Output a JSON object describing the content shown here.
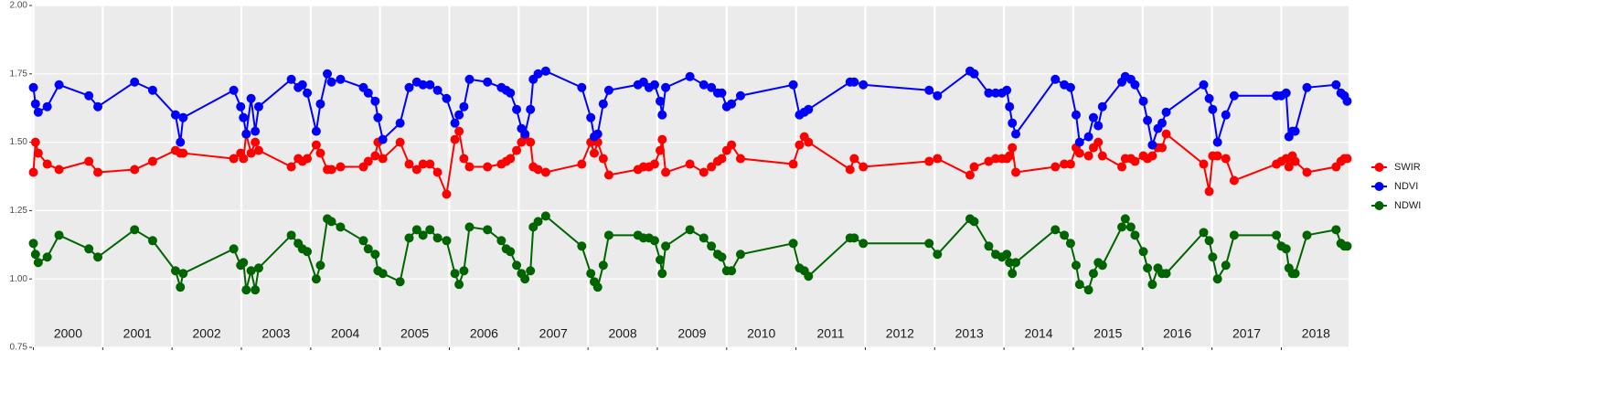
{
  "chart_data": {
    "type": "line",
    "x": [
      2000.0,
      2000.03,
      2000.07,
      2000.2,
      2000.37,
      2000.8,
      2000.93,
      2001.46,
      2001.72,
      2002.05,
      2002.12,
      2002.16,
      2002.89,
      2002.99,
      2003.03,
      2003.07,
      2003.14,
      2003.2,
      2003.25,
      2003.72,
      2003.82,
      2003.88,
      2003.95,
      2004.08,
      2004.14,
      2004.24,
      2004.3,
      2004.43,
      2004.76,
      2004.83,
      2004.93,
      2004.97,
      2005.04,
      2005.29,
      2005.42,
      2005.53,
      2005.62,
      2005.72,
      2005.83,
      2005.96,
      2006.08,
      2006.14,
      2006.21,
      2006.29,
      2006.55,
      2006.75,
      2006.82,
      2006.88,
      2006.97,
      2007.04,
      2007.09,
      2007.17,
      2007.21,
      2007.28,
      2007.39,
      2007.91,
      2008.04,
      2008.09,
      2008.14,
      2008.22,
      2008.3,
      2008.72,
      2008.8,
      2008.88,
      2008.96,
      2009.04,
      2009.07,
      2009.12,
      2009.47,
      2009.67,
      2009.78,
      2009.87,
      2009.93,
      2010.0,
      2010.07,
      2010.2,
      2010.96,
      2011.05,
      2011.12,
      2011.18,
      2011.78,
      2011.84,
      2011.97,
      2012.92,
      2013.04,
      2013.51,
      2013.57,
      2013.78,
      2013.88,
      2013.97,
      2014.04,
      2014.08,
      2014.12,
      2014.17,
      2014.74,
      2014.87,
      2014.96,
      2015.04,
      2015.09,
      2015.22,
      2015.29,
      2015.36,
      2015.42,
      2015.7,
      2015.75,
      2015.83,
      2015.89,
      2016.01,
      2016.07,
      2016.14,
      2016.22,
      2016.28,
      2016.34,
      2016.88,
      2016.96,
      2017.01,
      2017.08,
      2017.2,
      2017.32,
      2017.93,
      2018.0,
      2018.07,
      2018.11,
      2018.16,
      2018.2,
      2018.37,
      2018.79,
      2018.86,
      2018.91,
      2018.95
    ],
    "series": [
      {
        "name": "SWIR",
        "color": "#ff0000",
        "values": [
          1.39,
          1.5,
          1.46,
          1.42,
          1.4,
          1.43,
          1.39,
          1.4,
          1.43,
          1.47,
          1.46,
          1.46,
          1.44,
          1.46,
          1.44,
          1.53,
          1.46,
          1.5,
          1.47,
          1.41,
          1.44,
          1.43,
          1.44,
          1.49,
          1.46,
          1.4,
          1.4,
          1.41,
          1.41,
          1.43,
          1.45,
          1.5,
          1.44,
          1.5,
          1.42,
          1.4,
          1.42,
          1.42,
          1.39,
          1.31,
          1.51,
          1.54,
          1.44,
          1.41,
          1.41,
          1.42,
          1.43,
          1.44,
          1.47,
          1.5,
          1.52,
          1.5,
          1.41,
          1.4,
          1.39,
          1.42,
          1.5,
          1.46,
          1.5,
          1.44,
          1.38,
          1.4,
          1.41,
          1.41,
          1.42,
          1.47,
          1.51,
          1.39,
          1.42,
          1.39,
          1.41,
          1.43,
          1.44,
          1.47,
          1.49,
          1.44,
          1.42,
          1.49,
          1.52,
          1.5,
          1.4,
          1.44,
          1.41,
          1.43,
          1.44,
          1.38,
          1.41,
          1.43,
          1.44,
          1.44,
          1.44,
          1.45,
          1.48,
          1.39,
          1.41,
          1.42,
          1.42,
          1.48,
          1.46,
          1.45,
          1.48,
          1.5,
          1.45,
          1.41,
          1.44,
          1.44,
          1.43,
          1.45,
          1.44,
          1.45,
          1.48,
          1.48,
          1.53,
          1.42,
          1.32,
          1.45,
          1.45,
          1.44,
          1.36,
          1.42,
          1.43,
          1.44,
          1.41,
          1.45,
          1.43,
          1.39,
          1.41,
          1.43,
          1.44,
          1.44
        ]
      },
      {
        "name": "NDVI",
        "color": "#0000ff",
        "values": [
          1.7,
          1.64,
          1.61,
          1.63,
          1.71,
          1.67,
          1.63,
          1.72,
          1.69,
          1.6,
          1.5,
          1.59,
          1.69,
          1.63,
          1.59,
          1.53,
          1.66,
          1.54,
          1.63,
          1.73,
          1.7,
          1.71,
          1.68,
          1.54,
          1.64,
          1.75,
          1.72,
          1.73,
          1.7,
          1.68,
          1.65,
          1.59,
          1.51,
          1.57,
          1.7,
          1.72,
          1.71,
          1.71,
          1.69,
          1.66,
          1.57,
          1.6,
          1.63,
          1.73,
          1.72,
          1.7,
          1.69,
          1.68,
          1.62,
          1.55,
          1.53,
          1.62,
          1.73,
          1.75,
          1.76,
          1.7,
          1.59,
          1.52,
          1.53,
          1.64,
          1.69,
          1.71,
          1.72,
          1.7,
          1.71,
          1.65,
          1.6,
          1.7,
          1.74,
          1.71,
          1.7,
          1.68,
          1.68,
          1.63,
          1.64,
          1.67,
          1.71,
          1.6,
          1.61,
          1.62,
          1.72,
          1.72,
          1.71,
          1.69,
          1.67,
          1.76,
          1.75,
          1.68,
          1.68,
          1.68,
          1.69,
          1.63,
          1.57,
          1.53,
          1.73,
          1.71,
          1.7,
          1.6,
          1.5,
          1.52,
          1.59,
          1.56,
          1.63,
          1.72,
          1.74,
          1.73,
          1.71,
          1.65,
          1.58,
          1.49,
          1.55,
          1.57,
          1.61,
          1.71,
          1.66,
          1.62,
          1.5,
          1.6,
          1.67,
          1.67,
          1.67,
          1.68,
          1.52,
          1.54,
          1.54,
          1.7,
          1.71,
          1.68,
          1.67,
          1.65
        ]
      },
      {
        "name": "NDWI",
        "color": "#006400",
        "values": [
          1.13,
          1.09,
          1.06,
          1.08,
          1.16,
          1.11,
          1.08,
          1.18,
          1.14,
          1.03,
          0.97,
          1.02,
          1.11,
          1.05,
          1.06,
          0.96,
          1.03,
          0.96,
          1.04,
          1.16,
          1.13,
          1.11,
          1.1,
          1.0,
          1.05,
          1.22,
          1.21,
          1.19,
          1.14,
          1.11,
          1.09,
          1.03,
          1.02,
          0.99,
          1.15,
          1.18,
          1.16,
          1.18,
          1.15,
          1.14,
          1.02,
          0.98,
          1.03,
          1.19,
          1.18,
          1.14,
          1.11,
          1.1,
          1.05,
          1.02,
          1.0,
          1.03,
          1.19,
          1.21,
          1.23,
          1.12,
          1.02,
          0.99,
          0.97,
          1.05,
          1.16,
          1.16,
          1.15,
          1.15,
          1.14,
          1.07,
          1.02,
          1.12,
          1.18,
          1.15,
          1.12,
          1.09,
          1.08,
          1.03,
          1.03,
          1.09,
          1.13,
          1.04,
          1.03,
          1.01,
          1.15,
          1.15,
          1.13,
          1.13,
          1.09,
          1.22,
          1.21,
          1.12,
          1.09,
          1.08,
          1.09,
          1.06,
          1.02,
          1.06,
          1.18,
          1.16,
          1.13,
          1.05,
          0.98,
          0.96,
          1.02,
          1.06,
          1.05,
          1.19,
          1.22,
          1.19,
          1.16,
          1.1,
          1.04,
          0.98,
          1.04,
          1.02,
          1.02,
          1.17,
          1.14,
          1.08,
          1.0,
          1.05,
          1.16,
          1.16,
          1.12,
          1.11,
          1.04,
          1.02,
          1.02,
          1.16,
          1.18,
          1.13,
          1.12,
          1.12
        ]
      }
    ],
    "xlim": [
      1999.98,
      2018.97
    ],
    "xticks": [
      2000,
      2001,
      2002,
      2003,
      2004,
      2005,
      2006,
      2007,
      2008,
      2009,
      2010,
      2011,
      2012,
      2013,
      2014,
      2015,
      2016,
      2017,
      2018
    ],
    "ylim": [
      0.75,
      2.0
    ],
    "yticks": [
      {
        "value": 0.75,
        "label": "0.75"
      },
      {
        "value": 1.0,
        "label": "1.00"
      },
      {
        "value": 1.25,
        "label": "1.25"
      },
      {
        "value": 1.5,
        "label": "1.50"
      },
      {
        "value": 1.75,
        "label": "1.75"
      },
      {
        "value": 2.0,
        "label": "2.00"
      }
    ],
    "grid": true,
    "legend": "right"
  }
}
